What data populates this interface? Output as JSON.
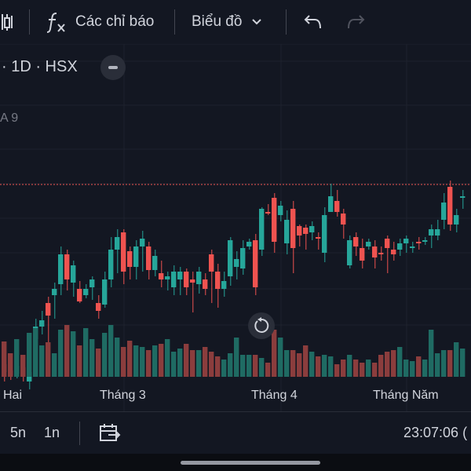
{
  "toolbar": {
    "indicators_label": "Các chỉ báo",
    "chart_label": "Biểu đồ"
  },
  "legend": {
    "symbol_info": "· 1D · HSX",
    "volume_label": "A 9"
  },
  "chart_data": {
    "type": "candlestick",
    "x_labels": [
      "Hai",
      "Tháng 3",
      "Tháng 4",
      "Tháng Năm"
    ],
    "colors": {
      "up": "#26a69a",
      "down": "#ef5350",
      "up_volume": "#1f6b63",
      "down_volume": "#8b3d3d",
      "price_line": "#ef5350"
    }
  },
  "bottom": {
    "range_5y": "5n",
    "range_1y": "1n",
    "time": "23:07:06 ("
  },
  "icons": {
    "candles": "candlestick-icon",
    "fx": "fx-icon",
    "chevron": "chevron-down-icon",
    "undo": "undo-icon",
    "redo": "redo-icon",
    "reset": "reset-icon",
    "goto_date": "calendar-goto-icon"
  }
}
